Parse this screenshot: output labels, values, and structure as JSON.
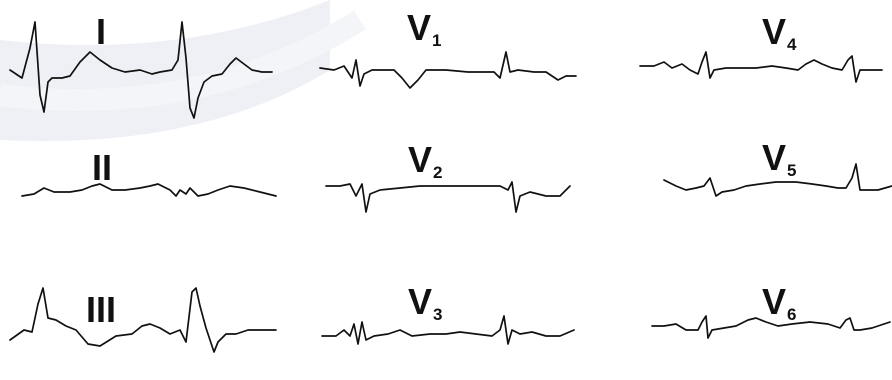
{
  "leads": [
    {
      "id": "I",
      "label": "I",
      "sub": ""
    },
    {
      "id": "II",
      "label": "II",
      "sub": ""
    },
    {
      "id": "III",
      "label": "III",
      "sub": ""
    },
    {
      "id": "V1",
      "label": "V",
      "sub": "1"
    },
    {
      "id": "V2",
      "label": "V",
      "sub": "2"
    },
    {
      "id": "V3",
      "label": "V",
      "sub": "3"
    },
    {
      "id": "V4",
      "label": "V",
      "sub": "4"
    },
    {
      "id": "V5",
      "label": "V",
      "sub": "5"
    },
    {
      "id": "V6",
      "label": "V",
      "sub": "6"
    }
  ],
  "colors": {
    "trace": "#111111",
    "background": "#ffffff",
    "watermark": "#eef0f6"
  }
}
